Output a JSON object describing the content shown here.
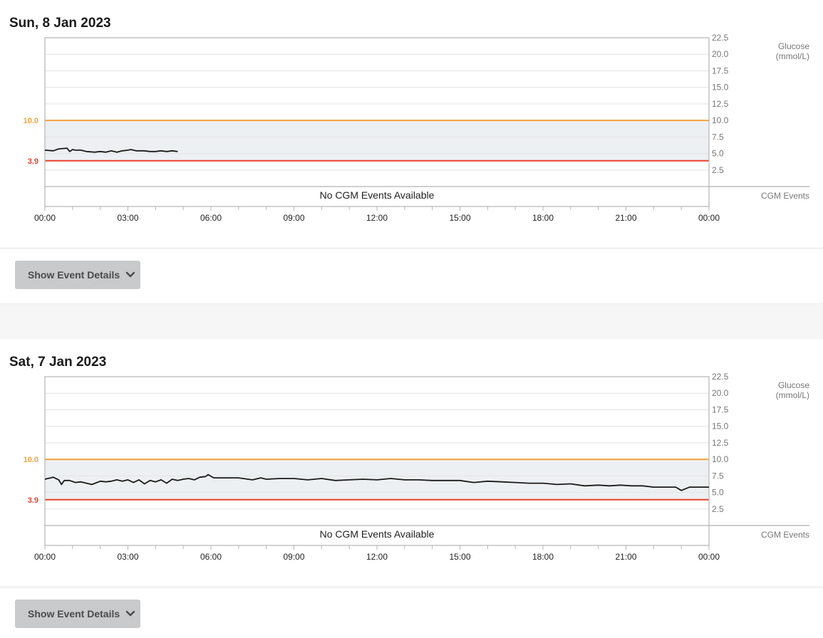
{
  "button_label": "Show Event Details",
  "colors": {
    "high": "#f5a13d",
    "low": "#e8412c",
    "target_band": "#edf0f3",
    "trace": "#1a1a1a",
    "grid": "#e4e4e4",
    "axis": "#b5b5b5",
    "button_bg": "#c8cacc"
  },
  "icons": {
    "button_icon": "chevron-down-icon"
  },
  "chart_data": [
    {
      "type": "line",
      "title": "Sun, 8 Jan 2023",
      "ylabel": "Glucose\n(mmol/L)",
      "events_label": "CGM Events",
      "no_events_text": "No CGM Events Available",
      "xlim": [
        0,
        24
      ],
      "ylim": [
        0,
        22.5
      ],
      "y_ticks": [
        "22.5",
        "20.0",
        "17.5",
        "15.0",
        "12.5",
        "10.0",
        "7.5",
        "5.0",
        "2.5"
      ],
      "x_ticks": [
        "00:00",
        "03:00",
        "06:00",
        "09:00",
        "12:00",
        "15:00",
        "18:00",
        "21:00",
        "00:00"
      ],
      "thresholds": {
        "high": "10.0",
        "low": "3.9"
      },
      "series": [
        {
          "x": [
            0,
            0.3,
            0.5,
            0.8,
            0.9,
            1.0,
            1.1,
            1.3,
            1.5,
            1.8,
            2.0,
            2.2,
            2.4,
            2.6,
            2.8,
            3.0,
            3.1,
            3.3,
            3.5,
            3.6,
            3.8,
            4.0,
            4.2,
            4.4,
            4.6,
            4.8
          ],
          "y": [
            5.5,
            5.4,
            5.7,
            5.8,
            5.3,
            5.6,
            5.5,
            5.5,
            5.3,
            5.2,
            5.3,
            5.2,
            5.4,
            5.2,
            5.4,
            5.5,
            5.6,
            5.4,
            5.4,
            5.4,
            5.3,
            5.3,
            5.4,
            5.3,
            5.4,
            5.3
          ]
        }
      ]
    },
    {
      "type": "line",
      "title": "Sat, 7 Jan 2023",
      "ylabel": "Glucose\n(mmol/L)",
      "events_label": "CGM Events",
      "no_events_text": "No CGM Events Available",
      "xlim": [
        0,
        24
      ],
      "ylim": [
        0,
        22.5
      ],
      "y_ticks": [
        "22.5",
        "20.0",
        "17.5",
        "15.0",
        "12.5",
        "10.0",
        "7.5",
        "5.0",
        "2.5"
      ],
      "x_ticks": [
        "00:00",
        "03:00",
        "06:00",
        "09:00",
        "12:00",
        "15:00",
        "18:00",
        "21:00",
        "00:00"
      ],
      "thresholds": {
        "high": "10.0",
        "low": "3.9"
      },
      "series": [
        {
          "x": [
            0,
            0.3,
            0.5,
            0.6,
            0.7,
            0.9,
            1.1,
            1.3,
            1.5,
            1.7,
            2.0,
            2.2,
            2.4,
            2.6,
            2.8,
            3.0,
            3.2,
            3.4,
            3.6,
            3.8,
            4.0,
            4.2,
            4.4,
            4.6,
            4.8,
            5.0,
            5.2,
            5.4,
            5.6,
            5.8,
            5.9,
            6.1,
            6.5,
            7.0,
            7.5,
            7.8,
            8.0,
            8.5,
            9.0,
            9.5,
            10.0,
            10.5,
            11.0,
            11.5,
            12.0,
            12.5,
            13.0,
            13.5,
            14.0,
            14.5,
            15.0,
            15.5,
            16.0,
            16.5,
            17.0,
            17.5,
            18.0,
            18.5,
            19.0,
            19.5,
            20.0,
            20.4,
            20.8,
            21.2,
            21.6,
            22.0,
            22.4,
            22.8,
            23.0,
            23.3,
            23.6,
            24.0
          ],
          "y": [
            7.0,
            7.3,
            6.9,
            6.2,
            6.8,
            6.8,
            6.5,
            6.6,
            6.4,
            6.2,
            6.7,
            6.6,
            6.7,
            6.9,
            6.7,
            6.9,
            6.5,
            6.9,
            6.3,
            6.8,
            6.6,
            6.9,
            6.4,
            7.0,
            6.8,
            7.0,
            7.1,
            6.9,
            7.3,
            7.4,
            7.7,
            7.2,
            7.2,
            7.2,
            6.9,
            7.2,
            7.0,
            7.1,
            7.1,
            6.9,
            7.1,
            6.8,
            6.9,
            7.0,
            6.9,
            7.1,
            6.9,
            6.9,
            6.8,
            6.8,
            6.8,
            6.5,
            6.7,
            6.6,
            6.5,
            6.4,
            6.4,
            6.2,
            6.3,
            6.0,
            6.1,
            6.0,
            6.1,
            6.0,
            6.0,
            5.8,
            5.8,
            5.8,
            5.3,
            5.8,
            5.8,
            5.8
          ]
        }
      ]
    }
  ]
}
